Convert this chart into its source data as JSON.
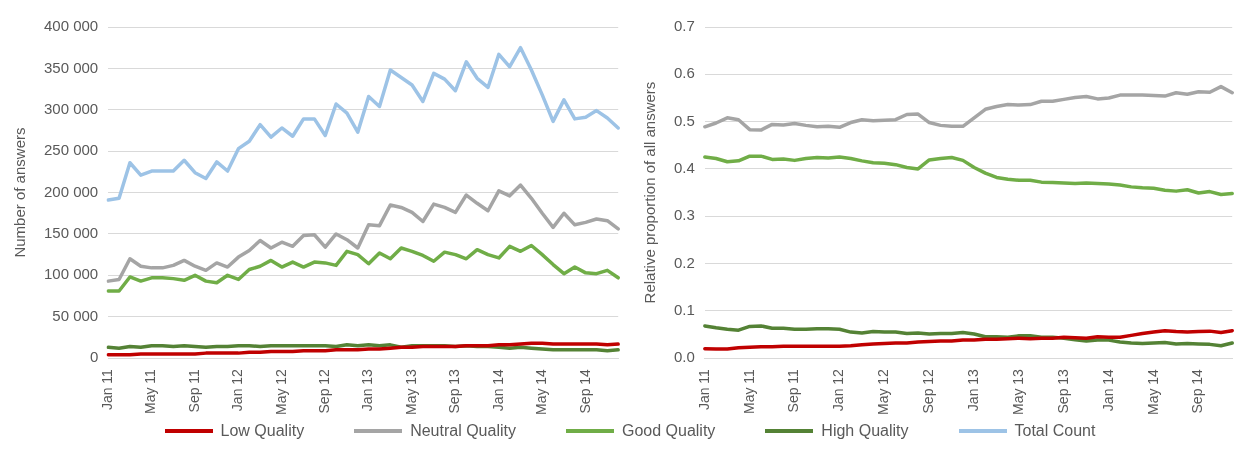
{
  "chart_data": [
    {
      "type": "line",
      "ylabel": "Number of answers",
      "legend": "bottom",
      "grid": "y",
      "marker": "none",
      "line_style": "solid",
      "categories": [
        "Jan 11",
        null,
        null,
        null,
        "May 11",
        null,
        null,
        null,
        "Sep 11",
        null,
        null,
        null,
        "Jan 12",
        null,
        null,
        null,
        "May 12",
        null,
        null,
        null,
        "Sep 12",
        null,
        null,
        null,
        "Jan 13",
        null,
        null,
        null,
        "May 13",
        null,
        null,
        null,
        "Sep 13",
        null,
        null,
        null,
        "Jan 14",
        null,
        null,
        null,
        "May 14",
        null,
        null,
        null,
        "Sep 14",
        null,
        null,
        null
      ],
      "ylim": [
        0,
        400000
      ],
      "yticks": [
        0,
        {
          "value": 50000,
          "label": "50 000"
        },
        {
          "value": 100000,
          "label": "100 000"
        },
        {
          "value": 150000,
          "label": "150 000"
        },
        {
          "value": 200000,
          "label": "200 000"
        },
        {
          "value": 250000,
          "label": "250 000"
        },
        {
          "value": 300000,
          "label": "300 000"
        },
        {
          "value": 350000,
          "label": "350 000"
        },
        {
          "value": 400000,
          "label": "400 000"
        }
      ],
      "series": [
        {
          "name": "Low Quality",
          "color": "#c00000",
          "values": [
            4000,
            4000,
            4000,
            5000,
            5000,
            5000,
            5000,
            5000,
            5000,
            6000,
            6000,
            6000,
            6000,
            7000,
            7000,
            8000,
            8000,
            8000,
            9000,
            9000,
            9000,
            10000,
            10000,
            10000,
            11000,
            11000,
            12000,
            13000,
            13000,
            14000,
            14000,
            14000,
            14000,
            15000,
            15000,
            15000,
            16000,
            16000,
            17000,
            18000,
            18000,
            17000,
            17000,
            17000,
            17000,
            17000,
            16000,
            17000
          ]
        },
        {
          "name": "Neutral Quality",
          "color": "#a5a5a5",
          "values": [
            93000,
            95000,
            120000,
            111000,
            109000,
            109000,
            112000,
            118000,
            111000,
            106000,
            115000,
            110000,
            122000,
            130000,
            142000,
            133000,
            140000,
            135000,
            148000,
            149000,
            134000,
            150000,
            143000,
            133000,
            161000,
            160000,
            185000,
            182000,
            176000,
            165000,
            186000,
            182000,
            176000,
            197000,
            187000,
            178000,
            202000,
            196000,
            209000,
            193000,
            175000,
            158000,
            175000,
            161000,
            164000,
            168000,
            166000,
            156000
          ]
        },
        {
          "name": "Good Quality",
          "color": "#70ad47",
          "values": [
            81000,
            81000,
            98000,
            93000,
            97000,
            97000,
            96000,
            94000,
            100000,
            93000,
            91000,
            100000,
            95000,
            107000,
            111000,
            118000,
            110000,
            116000,
            110000,
            116000,
            115000,
            112000,
            129000,
            125000,
            114000,
            127000,
            120000,
            133000,
            129000,
            124000,
            117000,
            128000,
            125000,
            120000,
            131000,
            125000,
            121000,
            135000,
            129000,
            136000,
            125000,
            113000,
            102000,
            110000,
            103000,
            102000,
            106000,
            97000
          ]
        },
        {
          "name": "High Quality",
          "color": "#548235",
          "values": [
            13000,
            12000,
            14000,
            13000,
            15000,
            15000,
            14000,
            15000,
            14000,
            13000,
            14000,
            14000,
            15000,
            15000,
            14000,
            15000,
            15000,
            15000,
            15000,
            15000,
            15000,
            14000,
            16000,
            15000,
            16000,
            15000,
            16000,
            13000,
            15000,
            15000,
            15000,
            15000,
            14000,
            15000,
            14000,
            14000,
            13000,
            12000,
            13000,
            12000,
            11000,
            10000,
            10000,
            10000,
            10000,
            10000,
            9000,
            10000
          ]
        },
        {
          "name": "Total Count",
          "color": "#9dc3e6",
          "values": [
            191000,
            193000,
            236000,
            221000,
            226000,
            226000,
            226000,
            239000,
            224000,
            217000,
            237000,
            226000,
            253000,
            262000,
            282000,
            267000,
            278000,
            268000,
            289000,
            289000,
            269000,
            307000,
            296000,
            273000,
            316000,
            304000,
            348000,
            339000,
            330000,
            310000,
            344000,
            337000,
            323000,
            358000,
            338000,
            327000,
            367000,
            352000,
            375000,
            348000,
            318000,
            286000,
            312000,
            289000,
            291000,
            299000,
            290000,
            278000
          ]
        }
      ]
    },
    {
      "type": "line",
      "ylabel": "Relative proportion of all answers",
      "grid": "y",
      "marker": "none",
      "line_style": "solid",
      "categories": [
        "Jan 11",
        null,
        null,
        null,
        "May 11",
        null,
        null,
        null,
        "Sep 11",
        null,
        null,
        null,
        "Jan 12",
        null,
        null,
        null,
        "May 12",
        null,
        null,
        null,
        "Sep 12",
        null,
        null,
        null,
        "Jan 13",
        null,
        null,
        null,
        "May 13",
        null,
        null,
        null,
        "Sep 13",
        null,
        null,
        null,
        "Jan 14",
        null,
        null,
        null,
        "May 14",
        null,
        null,
        null,
        "Sep 14",
        null,
        null,
        null
      ],
      "ylim": [
        0,
        0.7
      ],
      "yticks": [
        {
          "value": 0,
          "label": "0.0"
        },
        0.1,
        0.2,
        0.3,
        0.4,
        0.5,
        0.6,
        0.7
      ],
      "series": [
        {
          "name": "Low Quality",
          "color": "#c00000",
          "values": [
            0.02,
            0.019,
            0.019,
            0.022,
            0.023,
            0.024,
            0.024,
            0.025,
            0.025,
            0.025,
            0.025,
            0.025,
            0.025,
            0.026,
            0.028,
            0.03,
            0.031,
            0.032,
            0.032,
            0.034,
            0.035,
            0.036,
            0.036,
            0.038,
            0.038,
            0.04,
            0.04,
            0.041,
            0.042,
            0.041,
            0.042,
            0.042,
            0.044,
            0.043,
            0.042,
            0.045,
            0.044,
            0.044,
            0.048,
            0.052,
            0.055,
            0.058,
            0.056,
            0.055,
            0.056,
            0.057,
            0.054,
            0.058
          ]
        },
        {
          "name": "Neutral Quality",
          "color": "#a5a5a5",
          "values": [
            0.489,
            0.497,
            0.508,
            0.504,
            0.483,
            0.482,
            0.494,
            0.493,
            0.496,
            0.492,
            0.489,
            0.49,
            0.488,
            0.498,
            0.504,
            0.502,
            0.503,
            0.504,
            0.515,
            0.516,
            0.498,
            0.492,
            0.49,
            0.49,
            0.508,
            0.526,
            0.532,
            0.536,
            0.535,
            0.536,
            0.543,
            0.543,
            0.547,
            0.551,
            0.553,
            0.548,
            0.55,
            0.556,
            0.556,
            0.556,
            0.555,
            0.554,
            0.561,
            0.558,
            0.563,
            0.562,
            0.574,
            0.561
          ]
        },
        {
          "name": "Good Quality",
          "color": "#70ad47",
          "values": [
            0.425,
            0.422,
            0.415,
            0.417,
            0.427,
            0.427,
            0.42,
            0.421,
            0.418,
            0.422,
            0.424,
            0.423,
            0.425,
            0.422,
            0.417,
            0.413,
            0.412,
            0.409,
            0.403,
            0.4,
            0.419,
            0.422,
            0.424,
            0.418,
            0.403,
            0.391,
            0.382,
            0.378,
            0.376,
            0.376,
            0.372,
            0.371,
            0.37,
            0.369,
            0.37,
            0.369,
            0.368,
            0.366,
            0.362,
            0.36,
            0.359,
            0.355,
            0.353,
            0.356,
            0.349,
            0.352,
            0.346,
            0.348
          ]
        },
        {
          "name": "High Quality",
          "color": "#548235",
          "values": [
            0.068,
            0.064,
            0.061,
            0.059,
            0.067,
            0.068,
            0.063,
            0.063,
            0.061,
            0.061,
            0.062,
            0.062,
            0.061,
            0.055,
            0.053,
            0.056,
            0.055,
            0.055,
            0.052,
            0.053,
            0.051,
            0.052,
            0.052,
            0.054,
            0.051,
            0.045,
            0.045,
            0.044,
            0.047,
            0.047,
            0.044,
            0.044,
            0.042,
            0.039,
            0.036,
            0.038,
            0.038,
            0.034,
            0.032,
            0.031,
            0.032,
            0.033,
            0.03,
            0.031,
            0.03,
            0.029,
            0.026,
            0.032
          ]
        }
      ]
    }
  ]
}
